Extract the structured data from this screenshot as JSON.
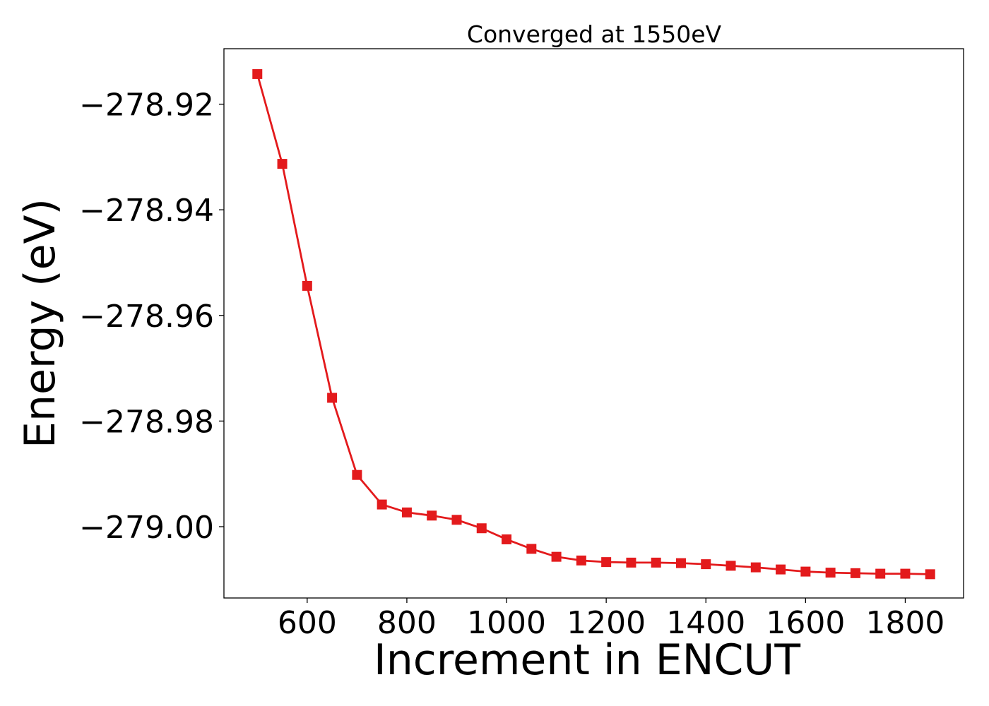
{
  "chart_data": {
    "type": "line",
    "title": "Converged at 1550eV",
    "xlabel": "Increment in ENCUT",
    "ylabel": "Energy (eV)",
    "xlim": [
      433,
      1917
    ],
    "ylim": [
      -279.0135,
      -278.9095
    ],
    "x_ticks": [
      600,
      800,
      1000,
      1200,
      1400,
      1600,
      1800
    ],
    "y_ticks": [
      -278.92,
      -278.94,
      -278.96,
      -278.98,
      -279.0
    ],
    "grid": false,
    "legend": "none",
    "series": [
      {
        "color": "#e31a1c",
        "marker": "square",
        "x": [
          500,
          550,
          600,
          650,
          700,
          750,
          800,
          850,
          900,
          950,
          1000,
          1050,
          1100,
          1150,
          1200,
          1250,
          1300,
          1350,
          1400,
          1450,
          1500,
          1550,
          1600,
          1650,
          1700,
          1750,
          1800,
          1850
        ],
        "values": [
          -278.9143,
          -278.9313,
          -278.9544,
          -278.9756,
          -278.9902,
          -278.9958,
          -278.9973,
          -278.9979,
          -278.9987,
          -279.0003,
          -279.0024,
          -279.0042,
          -279.0057,
          -279.0064,
          -279.0067,
          -279.0068,
          -279.0068,
          -279.0069,
          -279.0071,
          -279.0074,
          -279.0077,
          -279.0081,
          -279.0085,
          -279.0087,
          -279.0088,
          -279.0089,
          -279.0089,
          -279.009
        ]
      }
    ]
  }
}
